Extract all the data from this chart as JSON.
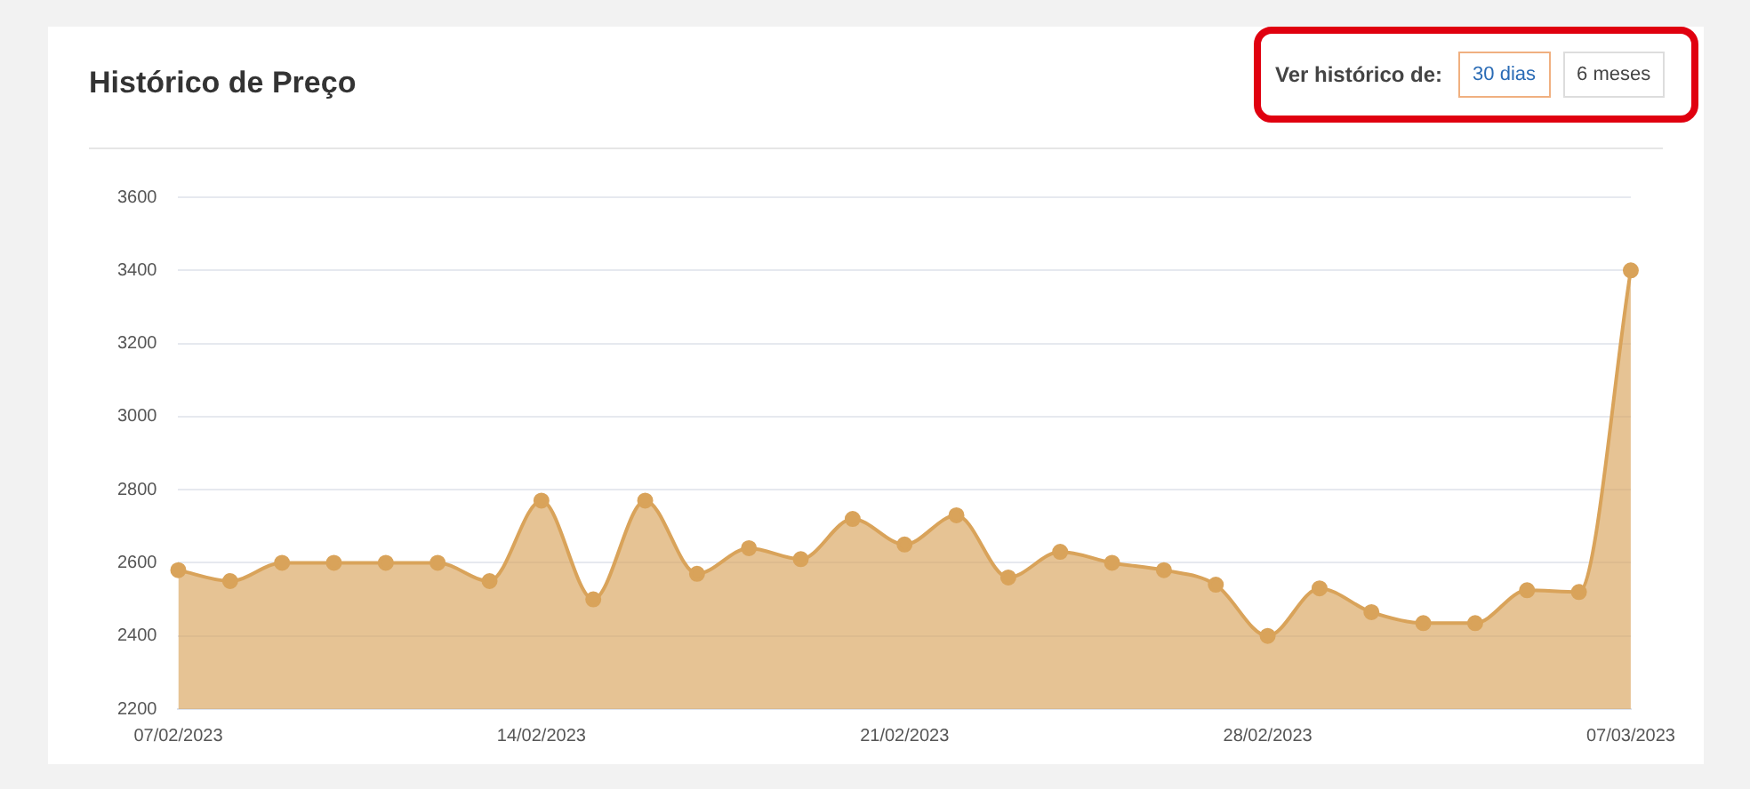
{
  "chart_data": {
    "type": "area",
    "title": "Histórico de Preço",
    "annotations": [
      "Ver histórico de:",
      "30 dias",
      "6 meses"
    ],
    "categories": [
      "07/02/2023",
      null,
      null,
      null,
      null,
      null,
      null,
      "14/02/2023",
      null,
      null,
      null,
      null,
      null,
      null,
      "21/02/2023",
      null,
      null,
      null,
      null,
      null,
      null,
      "28/02/2023",
      null,
      null,
      null,
      null,
      null,
      null,
      "07/03/2023"
    ],
    "series": [
      {
        "color": "#d9a35a",
        "values": [
          2580,
          2550,
          2600,
          2600,
          2600,
          2600,
          2550,
          2770,
          2500,
          2770,
          2570,
          2640,
          2610,
          2720,
          2650,
          2730,
          2560,
          2630,
          2600,
          2580,
          2540,
          2400,
          2530,
          2465,
          2435,
          2435,
          2525,
          2520,
          3400
        ]
      }
    ],
    "ylim": [
      2200,
      3600
    ],
    "yticks": [
      2200,
      2400,
      2600,
      2800,
      3000,
      3200,
      3400,
      3600
    ],
    "grid": "y",
    "legend": false,
    "marker": "circle"
  }
}
